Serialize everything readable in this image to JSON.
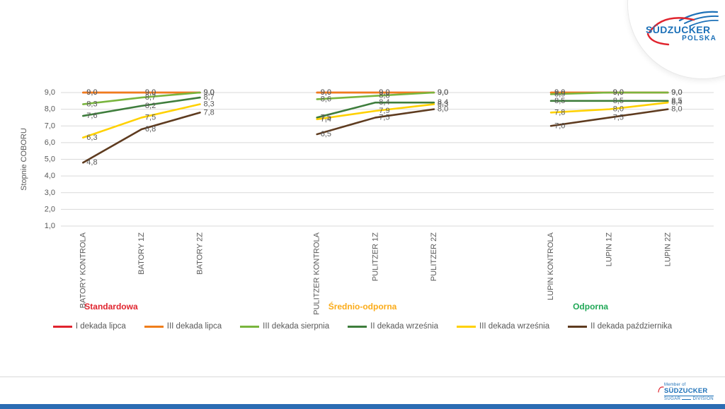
{
  "slide": {
    "header_logo": {
      "brand": "SÜDZUCKER",
      "sub": "POLSKA"
    },
    "footer_logo": {
      "member": "Member of",
      "brand": "SÜDZUCKER",
      "left": "SUGAR",
      "right": "DIVISION"
    },
    "footer_bar_color": "#2b6cb3",
    "brand_blue": "#1d71b8",
    "brand_red": "#e0242e"
  },
  "chart_data": {
    "type": "line",
    "title": "",
    "xlabel": "",
    "ylabel": "Stopnie COBORU",
    "ylim": [
      1.0,
      9.0
    ],
    "ytick_step": 1.0,
    "grid": true,
    "legend_position": "bottom",
    "value_format": "comma-decimal-1",
    "categories": [
      "BATORY KONTROLA",
      "BATORY 1Z",
      "BATORY 2Z",
      "PULITZER KONTROLA",
      "PULITZER 1Z",
      "PULITZER 2Z",
      "LUPIN KONTROLA",
      "LUPIN 1Z",
      "LUPIN 2Z"
    ],
    "groups": [
      {
        "label": "Standardowa",
        "color": "#e0242e",
        "category_indices": [
          0,
          1,
          2
        ]
      },
      {
        "label": "Średnio-odporna",
        "color": "#fbab18",
        "category_indices": [
          3,
          4,
          5
        ]
      },
      {
        "label": "Odporna",
        "color": "#21a857",
        "category_indices": [
          6,
          7,
          8
        ]
      }
    ],
    "series": [
      {
        "name": "I dekada lipca",
        "color": "#e0242e",
        "values": [
          9.0,
          9.0,
          9.0,
          9.0,
          9.0,
          9.0,
          9.0,
          9.0,
          9.0
        ]
      },
      {
        "name": "III dekada lipca",
        "color": "#ef7d1a",
        "values": [
          9.0,
          9.0,
          9.0,
          9.0,
          9.0,
          9.0,
          9.0,
          9.0,
          9.0
        ]
      },
      {
        "name": "III dekada sierpnia",
        "color": "#79b53e",
        "values": [
          8.3,
          8.7,
          9.0,
          8.6,
          8.8,
          9.0,
          8.9,
          9.0,
          9.0
        ]
      },
      {
        "name": "II dekada września",
        "color": "#3e7d3c",
        "values": [
          7.6,
          8.2,
          8.7,
          7.5,
          8.4,
          8.4,
          8.5,
          8.5,
          8.5
        ]
      },
      {
        "name": "III dekada września",
        "color": "#ffd100",
        "values": [
          6.3,
          7.5,
          8.3,
          7.4,
          7.9,
          8.3,
          7.8,
          8.0,
          8.4
        ]
      },
      {
        "name": "II dekada października",
        "color": "#5e3b1f",
        "values": [
          4.8,
          6.8,
          7.8,
          6.5,
          7.5,
          8.0,
          7.0,
          7.5,
          8.0
        ]
      }
    ],
    "axis_text_color": "#595959",
    "gridline_color": "#d9d9d9"
  }
}
